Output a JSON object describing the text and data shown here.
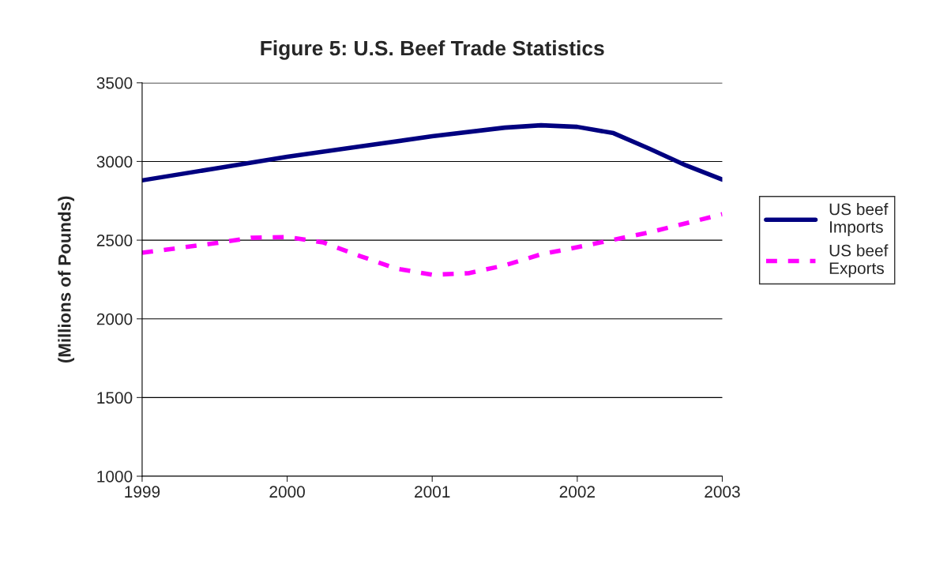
{
  "chart_data": {
    "type": "line",
    "title": "Figure 5: U.S. Beef Trade Statistics",
    "ylabel": "(Millions of Pounds)",
    "series": [
      {
        "name": "US beef Imports",
        "color": "#000080",
        "line_style": "solid",
        "x": [
          1999,
          1999.5,
          2000,
          2000.5,
          2001,
          2001.5,
          2001.75,
          2002,
          2002.25,
          2002.5,
          2002.75,
          2003
        ],
        "values": [
          2880,
          2955,
          3030,
          3095,
          3160,
          3215,
          3230,
          3220,
          3180,
          3080,
          2975,
          2885
        ]
      },
      {
        "name": "US beef Exports",
        "color": "#ff00ff",
        "line_style": "dashed",
        "x": [
          1999,
          1999.5,
          1999.75,
          2000,
          2000.25,
          2000.5,
          2000.75,
          2001,
          2001.25,
          2001.5,
          2001.75,
          2002,
          2002.5,
          2003
        ],
        "values": [
          2420,
          2480,
          2515,
          2520,
          2485,
          2400,
          2320,
          2280,
          2290,
          2340,
          2410,
          2455,
          2550,
          2665
        ]
      }
    ],
    "xlim": [
      1999,
      2003
    ],
    "xticks": [
      1999,
      2000,
      2001,
      2002,
      2003
    ],
    "ylim": [
      1000,
      3500
    ],
    "yticks": [
      1000,
      1500,
      2000,
      2500,
      3000,
      3500
    ],
    "grid": "y",
    "legend": "right",
    "marker": "none"
  }
}
